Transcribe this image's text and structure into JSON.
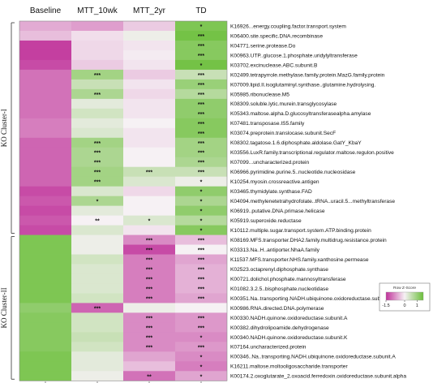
{
  "chart_data": {
    "type": "heatmap",
    "columns": [
      "Baseline",
      "MTT_10wk",
      "MTT_2yr",
      "TD"
    ],
    "cluster_labels": [
      "KO Cluster-I",
      "KO Cluster-II"
    ],
    "legend": {
      "title": "Row Z-Score",
      "ticks": [
        "-1.5",
        "0",
        "1"
      ],
      "range": [
        -1.5,
        1.5
      ],
      "low_color": "#c0329a",
      "mid_color": "#f6f1f4",
      "high_color": "#6bbf3a"
    },
    "rows": [
      {
        "label": "K16926...energy.coupling.factor.transport.system",
        "cluster": 0,
        "values": [
          -0.55,
          -0.65,
          -0.3,
          1.3
        ],
        "sig": [
          "",
          "",
          "",
          "*"
        ]
      },
      {
        "label": "K06400.site.specific.DNA.recombinase",
        "cluster": 0,
        "values": [
          -0.4,
          -0.15,
          0.1,
          1.4
        ],
        "sig": [
          "",
          "",
          "",
          "***"
        ]
      },
      {
        "label": "K04771.serine.protease.Do",
        "cluster": 0,
        "values": [
          -1.4,
          -0.2,
          -0.1,
          1.2
        ],
        "sig": [
          "",
          "",
          "",
          "***"
        ]
      },
      {
        "label": "K00963.UTP..glucose.1.phosphate.uridylyltransferase",
        "cluster": 0,
        "values": [
          -1.4,
          -0.2,
          -0.05,
          1.2
        ],
        "sig": [
          "",
          "",
          "",
          "***"
        ]
      },
      {
        "label": "K03702.excinuclease.ABC.subunit.B",
        "cluster": 0,
        "values": [
          -1.3,
          -0.3,
          -0.1,
          1.4
        ],
        "sig": [
          "",
          "",
          "",
          "*"
        ]
      },
      {
        "label": "K02499.tetrapyrrole.methylase.family.protein.MazG.family.protein",
        "cluster": 0,
        "values": [
          -1.0,
          0.9,
          -0.3,
          0.5
        ],
        "sig": [
          "",
          "***",
          "",
          "***"
        ]
      },
      {
        "label": "K07009.lipid.II.isoglutaminyl.synthase..glutamine.hydrolysing.",
        "cluster": 0,
        "values": [
          -1.0,
          0.5,
          -0.1,
          1.0
        ],
        "sig": [
          "",
          "",
          "",
          "***"
        ]
      },
      {
        "label": "K05985.ribonuclease.M5",
        "cluster": 0,
        "values": [
          -1.0,
          0.8,
          -0.2,
          0.7
        ],
        "sig": [
          "",
          "***",
          "",
          "***"
        ]
      },
      {
        "label": "K08309.soluble.lytic.murein.transglycosylase",
        "cluster": 0,
        "values": [
          -1.0,
          0.2,
          -0.1,
          1.1
        ],
        "sig": [
          "",
          "",
          "",
          "***"
        ]
      },
      {
        "label": "K05343.maltose.alpha.D.glucosyltransferasealpha.amylase",
        "cluster": 0,
        "values": [
          -1.0,
          0.4,
          -0.1,
          1.1
        ],
        "sig": [
          "",
          "",
          "",
          "***"
        ]
      },
      {
        "label": "K07481.transposase.IS5.family",
        "cluster": 0,
        "values": [
          -0.9,
          0.2,
          0.0,
          1.2
        ],
        "sig": [
          "",
          "",
          "",
          "***"
        ]
      },
      {
        "label": "K03074.preprotein.translocase.subunit.SecF",
        "cluster": 0,
        "values": [
          -0.9,
          0.3,
          -0.1,
          1.2
        ],
        "sig": [
          "",
          "",
          "",
          "***"
        ]
      },
      {
        "label": "K08302.tagatose.1.6.diphosphate.aldolase.GatY_KbaY",
        "cluster": 0,
        "values": [
          -1.1,
          0.9,
          -0.1,
          0.9
        ],
        "sig": [
          "",
          "***",
          "",
          "***"
        ]
      },
      {
        "label": "K03556.LuxR.family.transcriptional.regulator.maltose.regulon.positive",
        "cluster": 0,
        "values": [
          -1.1,
          0.8,
          0.0,
          0.9
        ],
        "sig": [
          "",
          "***",
          "",
          "***"
        ]
      },
      {
        "label": "K07099...uncharacterized.protein",
        "cluster": 0,
        "values": [
          -1.1,
          0.8,
          0.0,
          0.8
        ],
        "sig": [
          "",
          "***",
          "",
          "***"
        ]
      },
      {
        "label": "K06966.pyrimidine.purine.5..nucleotide.nucleosidase",
        "cluster": 0,
        "values": [
          -1.1,
          0.9,
          0.5,
          0.5
        ],
        "sig": [
          "",
          "***",
          "***",
          "***"
        ]
      },
      {
        "label": "K10254.myosin.crossreactive.antigen",
        "cluster": 0,
        "values": [
          -1.1,
          0.9,
          0.3,
          0.1
        ],
        "sig": [
          "",
          "***",
          "",
          "*"
        ]
      },
      {
        "label": "K03465.thymidylate.synthase.FAD",
        "cluster": 0,
        "values": [
          -1.3,
          0.3,
          -0.2,
          1.1
        ],
        "sig": [
          "",
          "",
          "",
          "*"
        ]
      },
      {
        "label": "K04094.methylenetetrahydrofolate..tRNA..uracil.5...methyltransferase",
        "cluster": 0,
        "values": [
          -1.2,
          0.8,
          0.0,
          0.8
        ],
        "sig": [
          "",
          "*",
          "",
          "*"
        ]
      },
      {
        "label": "K06919..putative.DNA.primase.helicase",
        "cluster": 0,
        "values": [
          -1.3,
          0.2,
          0.0,
          1.1
        ],
        "sig": [
          "",
          "",
          "",
          "*"
        ]
      },
      {
        "label": "K05919.superoxide.reductase",
        "cluster": 0,
        "values": [
          -1.2,
          0.0,
          0.3,
          0.7
        ],
        "sig": [
          "",
          "**",
          "*",
          "*"
        ]
      },
      {
        "label": "K10112.multiple.sugar.transport.system.ATP.binding.protein",
        "cluster": 0,
        "values": [
          -1.3,
          0.3,
          -0.1,
          1.2
        ],
        "sig": [
          "",
          "",
          "",
          "*"
        ]
      },
      {
        "label": "K08169.MFS.transporter.DHA2.family.multidrug.resistance.protein",
        "cluster": 1,
        "values": [
          1.3,
          0.1,
          -0.8,
          -0.4
        ],
        "sig": [
          "",
          "",
          "***",
          "***"
        ]
      },
      {
        "label": "K03313.Na..H..antiporter.NhaA.family",
        "cluster": 1,
        "values": [
          1.3,
          0.1,
          -1.3,
          0.0
        ],
        "sig": [
          "",
          "",
          "***",
          "***"
        ]
      },
      {
        "label": "K11537.MFS.transporter.NHS.family.xanthosine.permease",
        "cluster": 1,
        "values": [
          1.3,
          0.4,
          -0.9,
          -0.6
        ],
        "sig": [
          "",
          "",
          "***",
          "***"
        ]
      },
      {
        "label": "K02523.octaprenyl.diphosphate.synthase",
        "cluster": 1,
        "values": [
          1.3,
          0.3,
          -0.9,
          -0.5
        ],
        "sig": [
          "",
          "",
          "***",
          "***"
        ]
      },
      {
        "label": "K00721.dolichol.phosphate.mannosyltransferase",
        "cluster": 1,
        "values": [
          1.3,
          0.3,
          -0.9,
          -0.5
        ],
        "sig": [
          "",
          "",
          "***",
          "***"
        ]
      },
      {
        "label": "K01082.3.2.5..bisphosphate.nucleotidase",
        "cluster": 1,
        "values": [
          1.3,
          0.3,
          -0.9,
          -0.5
        ],
        "sig": [
          "",
          "",
          "***",
          "***"
        ]
      },
      {
        "label": "K00351.Na..transporting.NADH.ubiquinone.oxidoreductase.subunit.F",
        "cluster": 1,
        "values": [
          1.3,
          0.4,
          -0.9,
          -0.6
        ],
        "sig": [
          "",
          "",
          "***",
          "***"
        ]
      },
      {
        "label": "K00986.RNA.directed.DNA.polymerase",
        "cluster": 1,
        "values": [
          1.1,
          -1.1,
          0.1,
          0.0
        ],
        "sig": [
          "",
          "***",
          "",
          ""
        ]
      },
      {
        "label": "K00330.NADH.quinone.oxidoreductase.subunit.A",
        "cluster": 1,
        "values": [
          1.2,
          0.4,
          -0.8,
          -0.7
        ],
        "sig": [
          "",
          "",
          "***",
          "***"
        ]
      },
      {
        "label": "K00382.dihydrolipoamide.dehydrogenase",
        "cluster": 1,
        "values": [
          1.2,
          0.4,
          -0.8,
          -0.7
        ],
        "sig": [
          "",
          "",
          "***",
          "***"
        ]
      },
      {
        "label": "K00340.NADH.quinone.oxidoreductase.subunit.K",
        "cluster": 1,
        "values": [
          1.2,
          0.5,
          -0.8,
          -0.8
        ],
        "sig": [
          "",
          "",
          "***",
          "*"
        ]
      },
      {
        "label": "K07164.uncharacterized.protein",
        "cluster": 1,
        "values": [
          1.2,
          0.4,
          -0.8,
          -0.7
        ],
        "sig": [
          "",
          "",
          "***",
          "***"
        ]
      },
      {
        "label": "K00346..Na..transporting.NADH.ubiquinone.oxidoreductase.subunit.A",
        "cluster": 1,
        "values": [
          1.3,
          0.2,
          -0.6,
          -0.8
        ],
        "sig": [
          "",
          "",
          "",
          "*"
        ]
      },
      {
        "label": "K16211.maltose.moltooligosaccharide.transporter",
        "cluster": 1,
        "values": [
          1.3,
          0.2,
          -0.4,
          -0.9
        ],
        "sig": [
          "",
          "",
          "",
          "*"
        ]
      },
      {
        "label": "K00174.2.oxoglutarate_2.oxoacid.ferredoxin.oxidoreductase.subunit.alpha",
        "cluster": 1,
        "values": [
          1.3,
          0.1,
          -1.0,
          -0.6
        ],
        "sig": [
          "",
          "",
          "**",
          "*"
        ]
      }
    ]
  }
}
